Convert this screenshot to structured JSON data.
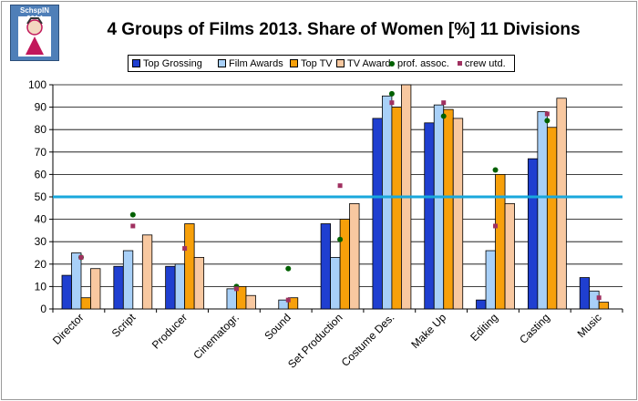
{
  "logo": {
    "text": "SchspIN 2014",
    "icon": "cartoon-figure-logo-icon"
  },
  "chart_data": {
    "type": "bar",
    "title": "4 Groups of Films 2013. Share of Women [%] 11 Divisions",
    "xlabel": "",
    "ylabel": "",
    "ylim": [
      0,
      100
    ],
    "yticks": [
      0,
      10,
      20,
      30,
      40,
      50,
      60,
      70,
      80,
      90,
      100
    ],
    "reference_line": 50,
    "categories": [
      "Director",
      "Script",
      "Producer",
      "Cinematogr.",
      "Sound",
      "Set Production",
      "Costume Des.",
      "Make Up",
      "Editing",
      "Casting",
      "Music"
    ],
    "series": [
      {
        "name": "Top Grossing",
        "color": "#1f3fd0",
        "values": [
          15,
          19,
          19,
          0,
          0,
          38,
          85,
          83,
          4,
          67,
          14
        ]
      },
      {
        "name": "Film Awards",
        "color": "#a8d0f8",
        "values": [
          25,
          26,
          20,
          9,
          4,
          23,
          95,
          91,
          26,
          88,
          8
        ]
      },
      {
        "name": "Top TV",
        "color": "#f7a00a",
        "values": [
          5,
          0,
          38,
          10,
          5,
          40,
          90,
          89,
          60,
          81,
          3
        ]
      },
      {
        "name": "TV Award",
        "color": "#f8c8a0",
        "values": [
          18,
          33,
          23,
          6,
          0,
          47,
          100,
          85,
          47,
          94,
          0
        ]
      }
    ],
    "markers": [
      {
        "name": "prof. assoc.",
        "color": "#006000",
        "shape": "dot",
        "values": [
          23,
          42,
          null,
          10,
          18,
          31,
          96,
          86,
          62,
          84,
          null
        ]
      },
      {
        "name": "crew utd.",
        "color": "#a03060",
        "shape": "square",
        "values": [
          23,
          37,
          27,
          9,
          4,
          55,
          92,
          92,
          37,
          87,
          5
        ]
      }
    ]
  }
}
